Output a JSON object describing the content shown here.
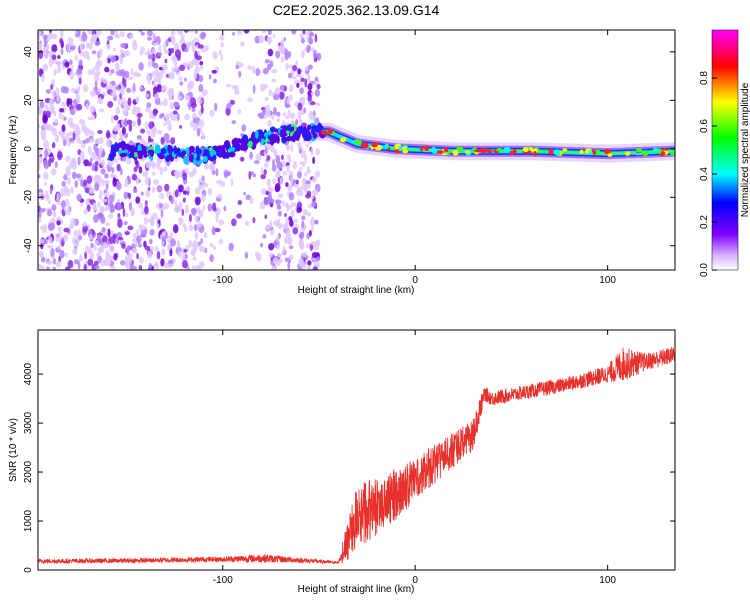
{
  "title": "C2E2.2025.362.13.09.G14",
  "chart_data": [
    {
      "type": "heatmap",
      "xlabel": "Height of straight line (km)",
      "ylabel": "Frequency (Hz)",
      "xlim": [
        -196,
        135
      ],
      "ylim": [
        -50,
        49
      ],
      "xticks": [
        -100,
        0,
        100
      ],
      "yticks": [
        -40,
        -20,
        0,
        20,
        40
      ],
      "colorbar": {
        "label": "Normalized spectral amplitude",
        "range": [
          0,
          1
        ],
        "ticks": [
          0.0,
          0.2,
          0.4,
          0.6,
          0.8
        ],
        "colormap": [
          "#ffffff",
          "#d9b3ff",
          "#7f00ff",
          "#0000ff",
          "#00ffff",
          "#00ff00",
          "#ffff00",
          "#ff0000",
          "#ff00ff"
        ]
      },
      "features": {
        "noise_region_x": [
          -196,
          -50
        ],
        "sparse_noise_gap_x": [
          -110,
          -80
        ],
        "carrier_track": [
          {
            "x": -155,
            "y": 0
          },
          {
            "x": -130,
            "y": -2
          },
          {
            "x": -110,
            "y": -3
          },
          {
            "x": -95,
            "y": 0
          },
          {
            "x": -80,
            "y": 5
          },
          {
            "x": -60,
            "y": 7
          },
          {
            "x": -45,
            "y": 7
          },
          {
            "x": -30,
            "y": 2
          },
          {
            "x": -10,
            "y": 0
          },
          {
            "x": 20,
            "y": -1
          },
          {
            "x": 60,
            "y": -1
          },
          {
            "x": 100,
            "y": -2
          },
          {
            "x": 135,
            "y": -1
          }
        ]
      }
    },
    {
      "type": "line",
      "xlabel": "Height of straight line (km)",
      "ylabel": "SNR (10 * v/v)",
      "xlim": [
        -196,
        135
      ],
      "ylim": [
        0,
        4900
      ],
      "xticks": [
        -100,
        0,
        100
      ],
      "yticks": [
        0,
        1000,
        2000,
        3000,
        4000
      ],
      "color": "#e8312b",
      "series": [
        {
          "x": [
            -196,
            -150,
            -100,
            -80,
            -60,
            -40,
            -35,
            -30,
            -25,
            -20,
            -10,
            0,
            10,
            20,
            30,
            36,
            40,
            60,
            80,
            100,
            108,
            120,
            135
          ],
          "y": [
            180,
            190,
            220,
            240,
            200,
            150,
            600,
            1100,
            1200,
            1300,
            1550,
            1850,
            2150,
            2450,
            2750,
            3600,
            3500,
            3650,
            3800,
            4000,
            4200,
            4250,
            4400
          ],
          "noise_amplitude": [
            80,
            80,
            90,
            150,
            90,
            40,
            500,
            700,
            700,
            650,
            600,
            500,
            450,
            400,
            350,
            250,
            250,
            250,
            250,
            300,
            600,
            300,
            300
          ]
        }
      ]
    }
  ]
}
